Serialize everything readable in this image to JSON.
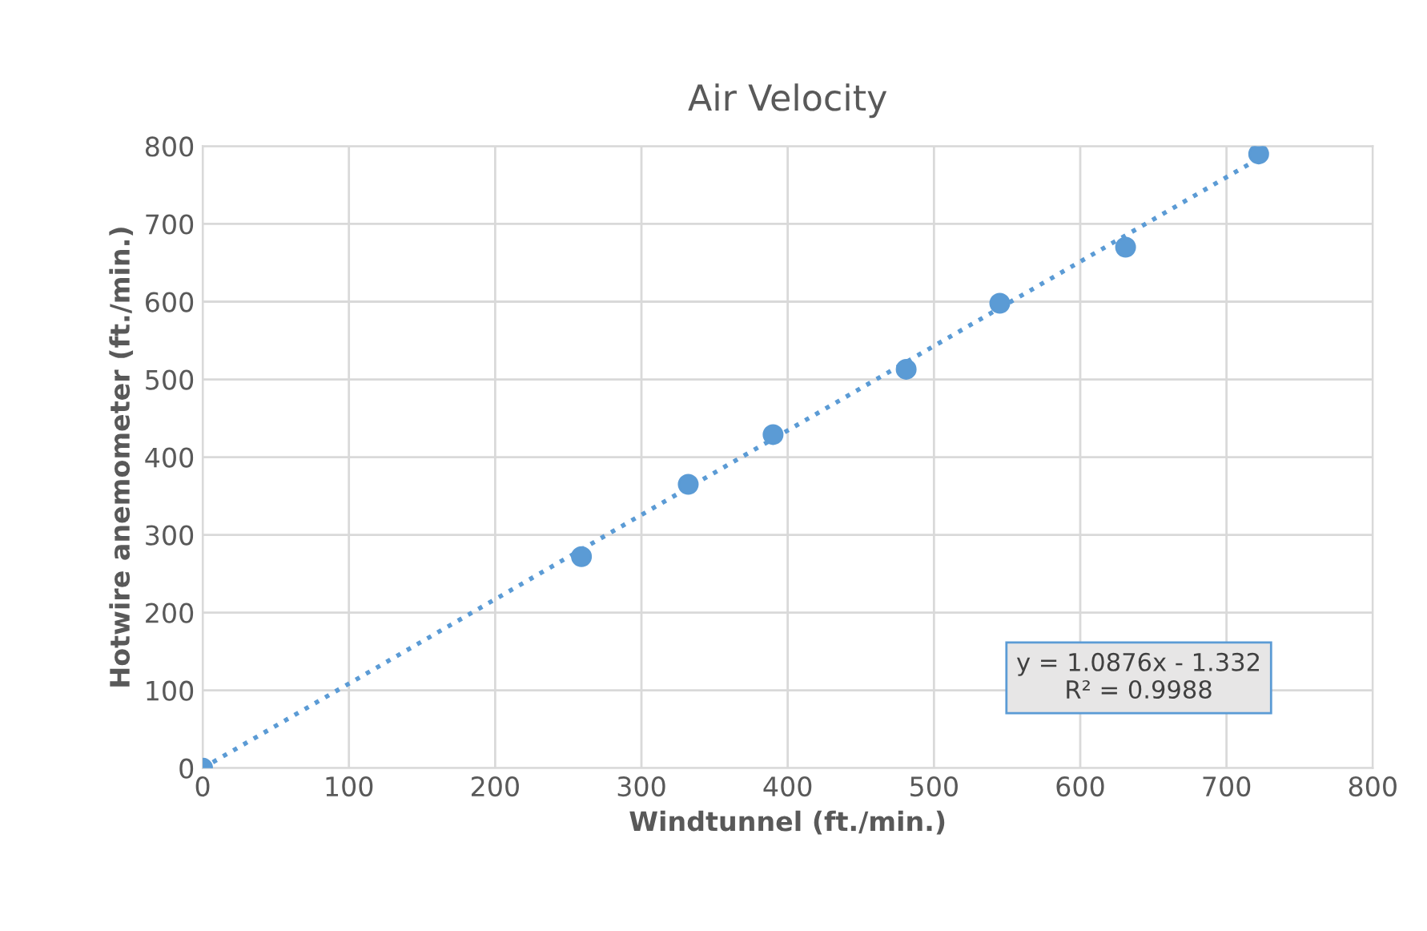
{
  "chart_data": {
    "type": "scatter",
    "title": "Air Velocity",
    "xlabel": "Windtunnel (ft./min.)",
    "ylabel": "Hotwire anemometer (ft./min.)",
    "series": [
      {
        "color": "#5b9bd5",
        "x": [
          0,
          259,
          332,
          390,
          481,
          545,
          631,
          722
        ],
        "values": [
          0,
          272,
          365,
          429,
          513,
          598,
          670,
          790
        ],
        "marker": "circle"
      },
      {
        "type": "line",
        "color": "#5b9bd5",
        "x": [
          0,
          722
        ],
        "values": [
          0,
          784
        ],
        "line_style": "dotted",
        "marker": "none"
      }
    ],
    "annotations": [
      "y = 1.0876x - 1.332\nR² = 0.9988"
    ],
    "xlim": [
      0,
      800
    ],
    "xticks": [
      0,
      100,
      200,
      300,
      400,
      500,
      600,
      700,
      800
    ],
    "ylim": [
      0,
      800
    ],
    "yticks": [
      0,
      100,
      200,
      300,
      400,
      500,
      600,
      700,
      800
    ],
    "grid": true,
    "legend": false
  }
}
